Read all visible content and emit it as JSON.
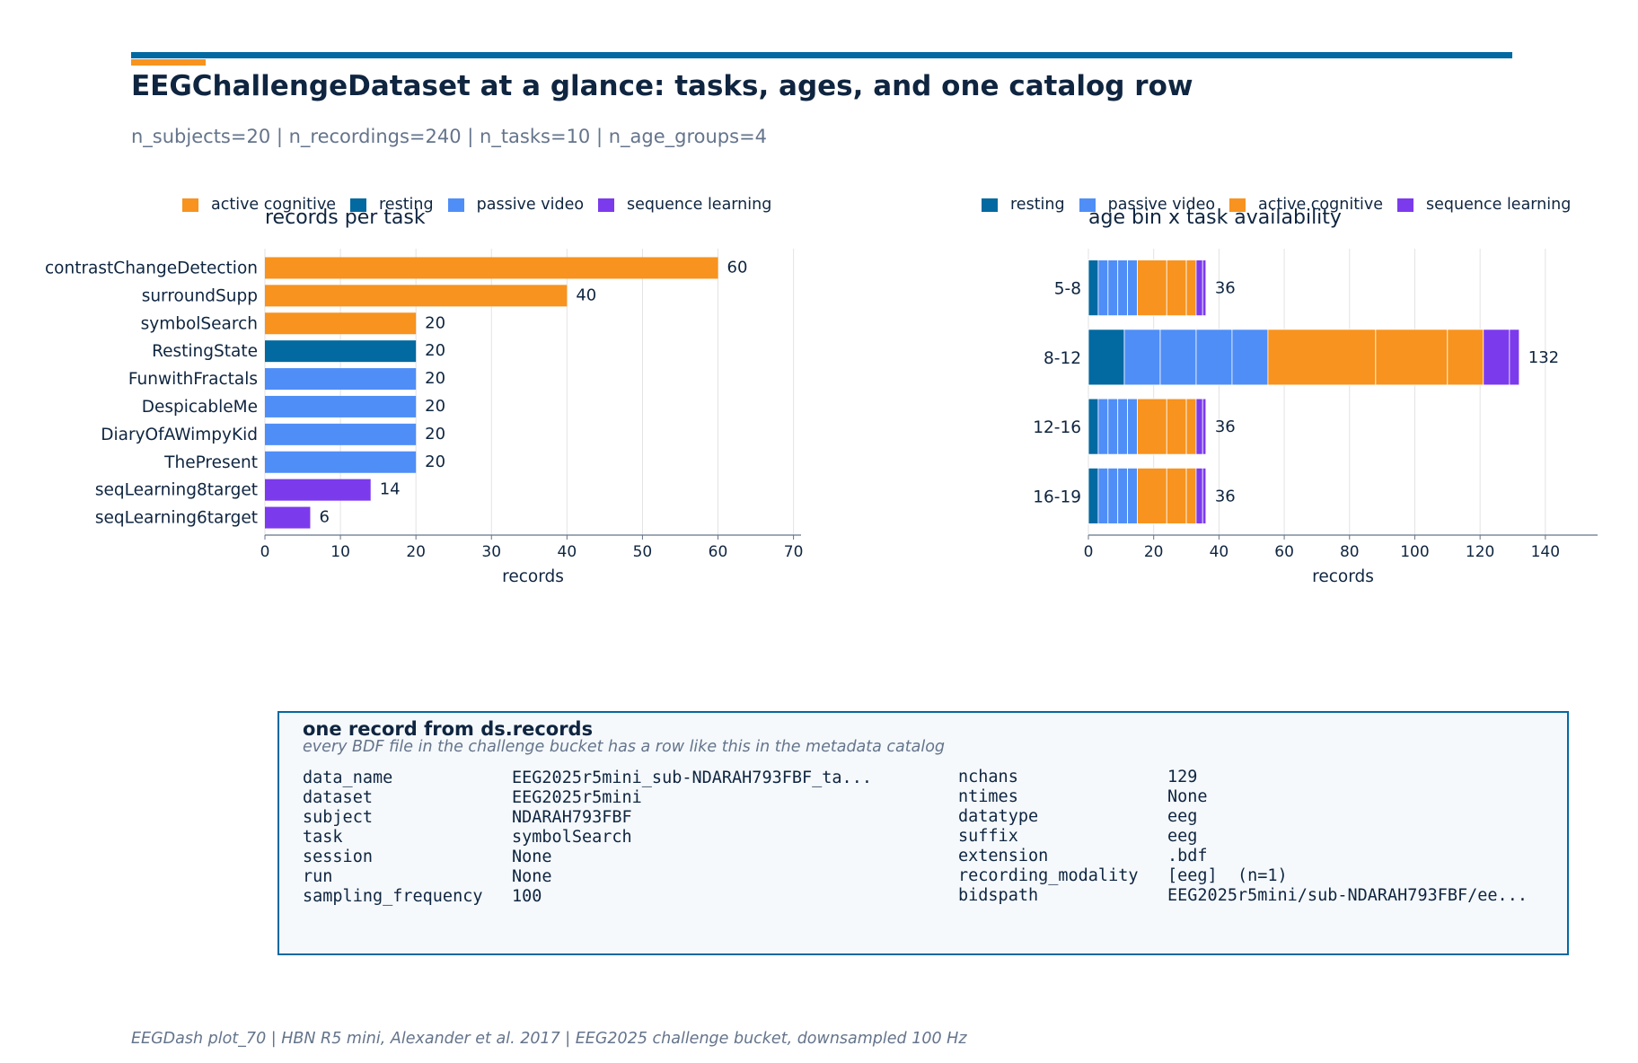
{
  "header": {
    "title": "EEGChallengeDataset at a glance: tasks, ages, and one catalog row",
    "subtitle": "n_subjects=20 | n_recordings=240 | n_tasks=10 | n_age_groups=4"
  },
  "colors": {
    "active cognitive": "#f7931e",
    "resting": "#0369a1",
    "passive video": "#4f8ef7",
    "sequence learning": "#7c3aed"
  },
  "chart_data": [
    {
      "type": "bar",
      "orientation": "horizontal",
      "title": "records per task",
      "xlabel": "records",
      "ylabel": "",
      "xlim": [
        0,
        71
      ],
      "xticks": [
        0,
        10,
        20,
        30,
        40,
        50,
        60,
        70
      ],
      "grid": true,
      "legend": {
        "placement": "top",
        "entries": [
          "active cognitive",
          "resting",
          "passive video",
          "sequence learning"
        ]
      },
      "categories": [
        "contrastChangeDetection",
        "surroundSupp",
        "symbolSearch",
        "RestingState",
        "FunwithFractals",
        "DespicableMe",
        "DiaryOfAWimpyKid",
        "ThePresent",
        "seqLearning8target",
        "seqLearning6target"
      ],
      "values": [
        60,
        40,
        20,
        20,
        20,
        20,
        20,
        20,
        14,
        6
      ],
      "groups": [
        "active cognitive",
        "active cognitive",
        "active cognitive",
        "resting",
        "passive video",
        "passive video",
        "passive video",
        "passive video",
        "sequence learning",
        "sequence learning"
      ],
      "data_labels": [
        "60",
        "40",
        "20",
        "20",
        "20",
        "20",
        "20",
        "20",
        "14",
        "6"
      ]
    },
    {
      "type": "bar",
      "orientation": "horizontal",
      "stacked": true,
      "title": "age bin x task availability",
      "xlabel": "records",
      "ylabel": "",
      "xlim": [
        0,
        156
      ],
      "xticks": [
        0,
        20,
        40,
        60,
        80,
        100,
        120,
        140
      ],
      "grid": true,
      "legend": {
        "placement": "top",
        "entries": [
          "resting",
          "passive video",
          "active cognitive",
          "sequence learning"
        ]
      },
      "categories": [
        "5-8",
        "8-12",
        "12-16",
        "16-19"
      ],
      "series": [
        {
          "name": "resting",
          "values": [
            3,
            11,
            3,
            3
          ]
        },
        {
          "name": "passive video",
          "values": [
            3,
            11,
            3,
            3
          ]
        },
        {
          "name": "passive video",
          "values": [
            3,
            11,
            3,
            3
          ]
        },
        {
          "name": "passive video",
          "values": [
            3,
            11,
            3,
            3
          ]
        },
        {
          "name": "passive video",
          "values": [
            3,
            11,
            3,
            3
          ]
        },
        {
          "name": "active cognitive",
          "values": [
            9,
            33,
            9,
            9
          ]
        },
        {
          "name": "active cognitive",
          "values": [
            6,
            22,
            6,
            6
          ]
        },
        {
          "name": "active cognitive",
          "values": [
            3,
            11,
            3,
            3
          ]
        },
        {
          "name": "sequence learning",
          "values": [
            2,
            8,
            2,
            2
          ]
        },
        {
          "name": "sequence learning",
          "values": [
            1,
            3,
            1,
            1
          ]
        }
      ],
      "totals": [
        36,
        132,
        36,
        36
      ],
      "data_labels": [
        "36",
        "132",
        "36",
        "36"
      ]
    }
  ],
  "record": {
    "title": "one record from ds.records",
    "subtitle": "every BDF file in the challenge bucket has a row like this in the metadata catalog",
    "left_keys": "data_name\ndataset\nsubject\ntask\nsession\nrun\nsampling_frequency",
    "left_values": "EEG2025r5mini_sub-NDARAH793FBF_ta...\nEEG2025r5mini\nNDARAH793FBF\nsymbolSearch\nNone\nNone\n100",
    "right_keys": "nchans\nntimes\ndatatype\nsuffix\nextension\nrecording_modality\nbidspath",
    "right_values": "129\nNone\neeg\neeg\n.bdf\n[eeg]  (n=1)\nEEG2025r5mini/sub-NDARAH793FBF/ee..."
  },
  "footer": "EEGDash plot_70 | HBN R5 mini, Alexander et al. 2017 | EEG2025 challenge bucket, downsampled 100 Hz"
}
